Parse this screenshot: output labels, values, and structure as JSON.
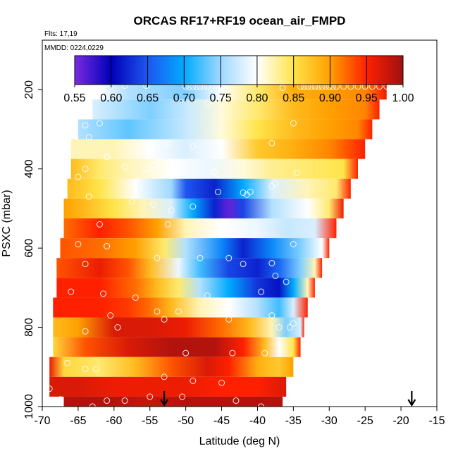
{
  "chart_data": {
    "type": "heatmap",
    "title": "ORCAS RF17+RF19 ocean_air_FMPD",
    "flights_note": "Flts: 17,19",
    "date_note": "MMDD: 0224,0229",
    "xlabel": "Latitude (deg N)",
    "ylabel": "PSXC (mbar)",
    "xlim": [
      -70,
      -15
    ],
    "ylim": [
      1000,
      75
    ],
    "y_inverted": true,
    "x_ticks": [
      "-70",
      "-65",
      "-60",
      "-55",
      "-50",
      "-45",
      "-40",
      "-35",
      "-30",
      "-25",
      "-20",
      "-15"
    ],
    "y_ticks": [
      "200",
      "400",
      "600",
      "800",
      "1000"
    ],
    "colorbar": {
      "ticks": [
        "0.55",
        "0.60",
        "0.65",
        "0.70",
        "0.75",
        "0.80",
        "0.85",
        "0.90",
        "0.95",
        "1.00"
      ],
      "min": 0.55,
      "max": 1.0,
      "stops": [
        {
          "v": 0.55,
          "color": "#7a2be0"
        },
        {
          "v": 0.6,
          "color": "#0000b8"
        },
        {
          "v": 0.65,
          "color": "#1e56f0"
        },
        {
          "v": 0.7,
          "color": "#00aaff"
        },
        {
          "v": 0.75,
          "color": "#9fd8ff"
        },
        {
          "v": 0.8,
          "color": "#ffffff"
        },
        {
          "v": 0.85,
          "color": "#ffe44a"
        },
        {
          "v": 0.9,
          "color": "#ffa000"
        },
        {
          "v": 0.95,
          "color": "#ff2000"
        },
        {
          "v": 1.0,
          "color": "#a01010"
        }
      ]
    },
    "bands": [
      {
        "p": 200,
        "xmin": -62,
        "xmax": -22,
        "pts": [
          [
            -62,
            0.8
          ],
          [
            -58,
            0.76
          ],
          [
            -50,
            0.74
          ],
          [
            -45,
            0.8
          ],
          [
            -40,
            0.84
          ],
          [
            -35,
            0.89
          ],
          [
            -30,
            0.9
          ],
          [
            -25,
            0.91
          ],
          [
            -23,
            0.94
          ],
          [
            -22,
            0.96
          ]
        ]
      },
      {
        "p": 250,
        "xmin": -63,
        "xmax": -23,
        "pts": [
          [
            -63,
            0.78
          ],
          [
            -55,
            0.74
          ],
          [
            -50,
            0.77
          ],
          [
            -45,
            0.81
          ],
          [
            -40,
            0.84
          ],
          [
            -35,
            0.88
          ],
          [
            -30,
            0.9
          ],
          [
            -25,
            0.91
          ],
          [
            -23,
            0.95
          ]
        ]
      },
      {
        "p": 300,
        "xmin": -65,
        "xmax": -24,
        "pts": [
          [
            -65,
            0.76
          ],
          [
            -58,
            0.73
          ],
          [
            -50,
            0.77
          ],
          [
            -45,
            0.81
          ],
          [
            -40,
            0.85
          ],
          [
            -35,
            0.88
          ],
          [
            -30,
            0.9
          ],
          [
            -26,
            0.91
          ],
          [
            -24,
            0.95
          ]
        ]
      },
      {
        "p": 350,
        "xmin": -66,
        "xmax": -25,
        "pts": [
          [
            -66,
            0.82
          ],
          [
            -60,
            0.82
          ],
          [
            -55,
            0.8
          ],
          [
            -50,
            0.78
          ],
          [
            -45,
            0.8
          ],
          [
            -40,
            0.87
          ],
          [
            -35,
            0.89
          ],
          [
            -30,
            0.91
          ],
          [
            -25,
            0.95
          ]
        ]
      },
      {
        "p": 400,
        "xmin": -66,
        "xmax": -26,
        "pts": [
          [
            -66,
            0.88
          ],
          [
            -62,
            0.84
          ],
          [
            -58,
            0.82
          ],
          [
            -52,
            0.8
          ],
          [
            -47,
            0.79
          ],
          [
            -42,
            0.81
          ],
          [
            -38,
            0.83
          ],
          [
            -33,
            0.84
          ],
          [
            -28,
            0.85
          ],
          [
            -26,
            0.95
          ]
        ]
      },
      {
        "p": 450,
        "xmin": -66.5,
        "xmax": -27,
        "pts": [
          [
            -66.5,
            0.88
          ],
          [
            -62,
            0.85
          ],
          [
            -57,
            0.8
          ],
          [
            -52,
            0.75
          ],
          [
            -50,
            0.65
          ],
          [
            -46,
            0.62
          ],
          [
            -42,
            0.7
          ],
          [
            -38,
            0.78
          ],
          [
            -33,
            0.82
          ],
          [
            -29,
            0.84
          ],
          [
            -27,
            0.95
          ]
        ]
      },
      {
        "p": 500,
        "xmin": -67,
        "xmax": -28,
        "pts": [
          [
            -67,
            0.9
          ],
          [
            -64,
            0.88
          ],
          [
            -60,
            0.85
          ],
          [
            -56,
            0.82
          ],
          [
            -52,
            0.78
          ],
          [
            -49,
            0.7
          ],
          [
            -46,
            0.62
          ],
          [
            -44,
            0.56
          ],
          [
            -42,
            0.64
          ],
          [
            -38,
            0.76
          ],
          [
            -33,
            0.8
          ],
          [
            -30,
            0.84
          ],
          [
            -28,
            0.96
          ]
        ]
      },
      {
        "p": 550,
        "xmin": -67,
        "xmax": -29,
        "pts": [
          [
            -67,
            0.92
          ],
          [
            -62,
            0.95
          ],
          [
            -58,
            0.93
          ],
          [
            -54,
            0.9
          ],
          [
            -50,
            0.82
          ],
          [
            -45,
            0.8
          ],
          [
            -40,
            0.79
          ],
          [
            -36,
            0.77
          ],
          [
            -32,
            0.78
          ],
          [
            -29,
            0.95
          ]
        ]
      },
      {
        "p": 600,
        "xmin": -67.5,
        "xmax": -30,
        "pts": [
          [
            -67.5,
            0.93
          ],
          [
            -62,
            0.92
          ],
          [
            -57,
            0.9
          ],
          [
            -53,
            0.84
          ],
          [
            -50,
            0.76
          ],
          [
            -45,
            0.68
          ],
          [
            -42,
            0.62
          ],
          [
            -38,
            0.68
          ],
          [
            -34,
            0.74
          ],
          [
            -31,
            0.8
          ],
          [
            -30,
            0.95
          ]
        ]
      },
      {
        "p": 650,
        "xmin": -68,
        "xmax": -31,
        "pts": [
          [
            -68,
            0.93
          ],
          [
            -62,
            0.96
          ],
          [
            -58,
            0.93
          ],
          [
            -55,
            0.88
          ],
          [
            -51,
            0.79
          ],
          [
            -48,
            0.72
          ],
          [
            -44,
            0.64
          ],
          [
            -40,
            0.62
          ],
          [
            -37,
            0.66
          ],
          [
            -34,
            0.74
          ],
          [
            -32,
            0.82
          ],
          [
            -31,
            0.95
          ]
        ]
      },
      {
        "p": 700,
        "xmin": -68,
        "xmax": -32,
        "pts": [
          [
            -68,
            0.95
          ],
          [
            -62,
            0.95
          ],
          [
            -57,
            0.92
          ],
          [
            -54,
            0.88
          ],
          [
            -51,
            0.84
          ],
          [
            -48,
            0.76
          ],
          [
            -44,
            0.7
          ],
          [
            -40,
            0.63
          ],
          [
            -37,
            0.61
          ],
          [
            -35,
            0.7
          ],
          [
            -33,
            0.82
          ],
          [
            -32,
            0.95
          ]
        ]
      },
      {
        "p": 750,
        "xmin": -68.5,
        "xmax": -33,
        "pts": [
          [
            -68.5,
            0.95
          ],
          [
            -62,
            0.95
          ],
          [
            -58,
            0.94
          ],
          [
            -55,
            0.92
          ],
          [
            -52,
            0.88
          ],
          [
            -48,
            0.82
          ],
          [
            -44,
            0.8
          ],
          [
            -40,
            0.76
          ],
          [
            -37,
            0.72
          ],
          [
            -35,
            0.78
          ],
          [
            -33,
            0.95
          ]
        ]
      },
      {
        "p": 800,
        "xmin": -68.5,
        "xmax": -33.5,
        "pts": [
          [
            -68.5,
            0.88
          ],
          [
            -65,
            0.9
          ],
          [
            -60,
            0.97
          ],
          [
            -55,
            0.97
          ],
          [
            -50,
            0.96
          ],
          [
            -45,
            0.92
          ],
          [
            -41,
            0.88
          ],
          [
            -38,
            0.82
          ],
          [
            -36,
            0.74
          ],
          [
            -34,
            0.78
          ],
          [
            -33.5,
            0.95
          ]
        ]
      },
      {
        "p": 850,
        "xmin": -68.5,
        "xmax": -34,
        "pts": [
          [
            -68.5,
            0.86
          ],
          [
            -64,
            0.93
          ],
          [
            -58,
            0.97
          ],
          [
            -52,
            0.99
          ],
          [
            -46,
            0.99
          ],
          [
            -42,
            0.95
          ],
          [
            -39,
            0.88
          ],
          [
            -37,
            0.8
          ],
          [
            -35,
            0.85
          ],
          [
            -34,
            0.95
          ]
        ]
      },
      {
        "p": 900,
        "xmin": -69,
        "xmax": -35,
        "pts": [
          [
            -69,
            0.96
          ],
          [
            -67,
            0.86
          ],
          [
            -62,
            0.84
          ],
          [
            -57,
            0.88
          ],
          [
            -52,
            0.93
          ],
          [
            -47,
            0.97
          ],
          [
            -44,
            0.95
          ],
          [
            -40,
            0.89
          ],
          [
            -37,
            0.87
          ],
          [
            -35,
            0.9
          ]
        ]
      },
      {
        "p": 950,
        "xmin": -69,
        "xmax": -36,
        "pts": [
          [
            -69,
            0.97
          ],
          [
            -65,
            0.97
          ],
          [
            -60,
            0.96
          ],
          [
            -55,
            0.96
          ],
          [
            -50,
            0.96
          ],
          [
            -45,
            0.95
          ],
          [
            -40,
            0.95
          ],
          [
            -36,
            0.97
          ]
        ]
      },
      {
        "p": 1000,
        "xmin": -67,
        "xmax": -36.5,
        "pts": [
          [
            -67,
            0.99
          ],
          [
            -60,
            0.99
          ],
          [
            -55,
            0.98
          ],
          [
            -50,
            0.99
          ],
          [
            -45,
            0.99
          ],
          [
            -40,
            0.99
          ],
          [
            -36.5,
            0.99
          ]
        ]
      }
    ],
    "markers": [
      [
        -61.5,
        190
      ],
      [
        -58.5,
        190
      ],
      [
        -55.5,
        190
      ],
      [
        -50,
        192
      ],
      [
        -49.5,
        192
      ],
      [
        -49,
        192
      ],
      [
        -48.5,
        192
      ],
      [
        -48,
        192
      ],
      [
        -47.5,
        192
      ],
      [
        -47,
        192
      ],
      [
        -36.5,
        195
      ],
      [
        -34,
        192
      ],
      [
        -33.5,
        192
      ],
      [
        -33,
        192
      ],
      [
        -32.5,
        192
      ],
      [
        -32,
        192
      ],
      [
        -31.5,
        192
      ],
      [
        -31,
        192
      ],
      [
        -30.5,
        192
      ],
      [
        -30,
        192
      ],
      [
        -29.5,
        192
      ],
      [
        -29,
        192
      ],
      [
        -28,
        192
      ],
      [
        -27,
        192
      ],
      [
        -26,
        192
      ],
      [
        -25,
        192
      ],
      [
        -24,
        192
      ],
      [
        -23,
        192
      ],
      [
        -22,
        192
      ],
      [
        -47,
        235
      ],
      [
        -64,
        290
      ],
      [
        -62,
        285
      ],
      [
        -35,
        285
      ],
      [
        -52.5,
        335
      ],
      [
        -49,
        343
      ],
      [
        -63.5,
        320
      ],
      [
        -61,
        370
      ],
      [
        -38,
        335
      ],
      [
        -52,
        405
      ],
      [
        -46,
        408
      ],
      [
        -64,
        400
      ],
      [
        -65,
        420
      ],
      [
        -58.5,
        395
      ],
      [
        -54.5,
        390
      ],
      [
        -55.5,
        400
      ],
      [
        -34.5,
        410
      ],
      [
        -42,
        460
      ],
      [
        -41,
        458
      ],
      [
        -45.5,
        458
      ],
      [
        -41.5,
        465
      ],
      [
        -37.5,
        437
      ],
      [
        -38,
        444
      ],
      [
        -63.5,
        470
      ],
      [
        -57.5,
        482
      ],
      [
        -54.5,
        490
      ],
      [
        -52,
        505
      ],
      [
        -49,
        495
      ],
      [
        -62,
        540
      ],
      [
        -52.5,
        540
      ],
      [
        -45,
        542
      ],
      [
        -65,
        590
      ],
      [
        -54,
        625
      ],
      [
        -48,
        625
      ],
      [
        -44,
        625
      ],
      [
        -38,
        638
      ],
      [
        -35,
        590
      ],
      [
        -42,
        640
      ],
      [
        -64,
        640
      ],
      [
        -61,
        595
      ],
      [
        -66,
        710
      ],
      [
        -61.5,
        715
      ],
      [
        -57,
        725
      ],
      [
        -47,
        720
      ],
      [
        -51,
        760
      ],
      [
        -54,
        760
      ],
      [
        -53,
        780
      ],
      [
        -60.5,
        770
      ],
      [
        -59.5,
        800
      ],
      [
        -64,
        810
      ],
      [
        -50,
        865
      ],
      [
        -43.5,
        865
      ],
      [
        -39,
        865
      ],
      [
        -44,
        780
      ],
      [
        -38,
        770
      ],
      [
        -39.5,
        710
      ],
      [
        -37.5,
        670
      ],
      [
        -36,
        685
      ],
      [
        -35,
        790
      ],
      [
        -35.5,
        800
      ],
      [
        -37,
        800
      ],
      [
        -64,
        905
      ],
      [
        -66.5,
        890
      ],
      [
        -62.5,
        905
      ],
      [
        -53,
        925
      ],
      [
        -49,
        935
      ],
      [
        -45,
        940
      ],
      [
        -43,
        985
      ],
      [
        -63,
        1000
      ],
      [
        -61,
        985
      ],
      [
        -58.5,
        985
      ],
      [
        -55,
        975
      ],
      [
        -50.5,
        975
      ],
      [
        -39.5,
        1000
      ],
      [
        -67.5,
        982
      ],
      [
        -69,
        955
      ]
    ],
    "arrows_x": [
      -53,
      -18.5
    ]
  }
}
